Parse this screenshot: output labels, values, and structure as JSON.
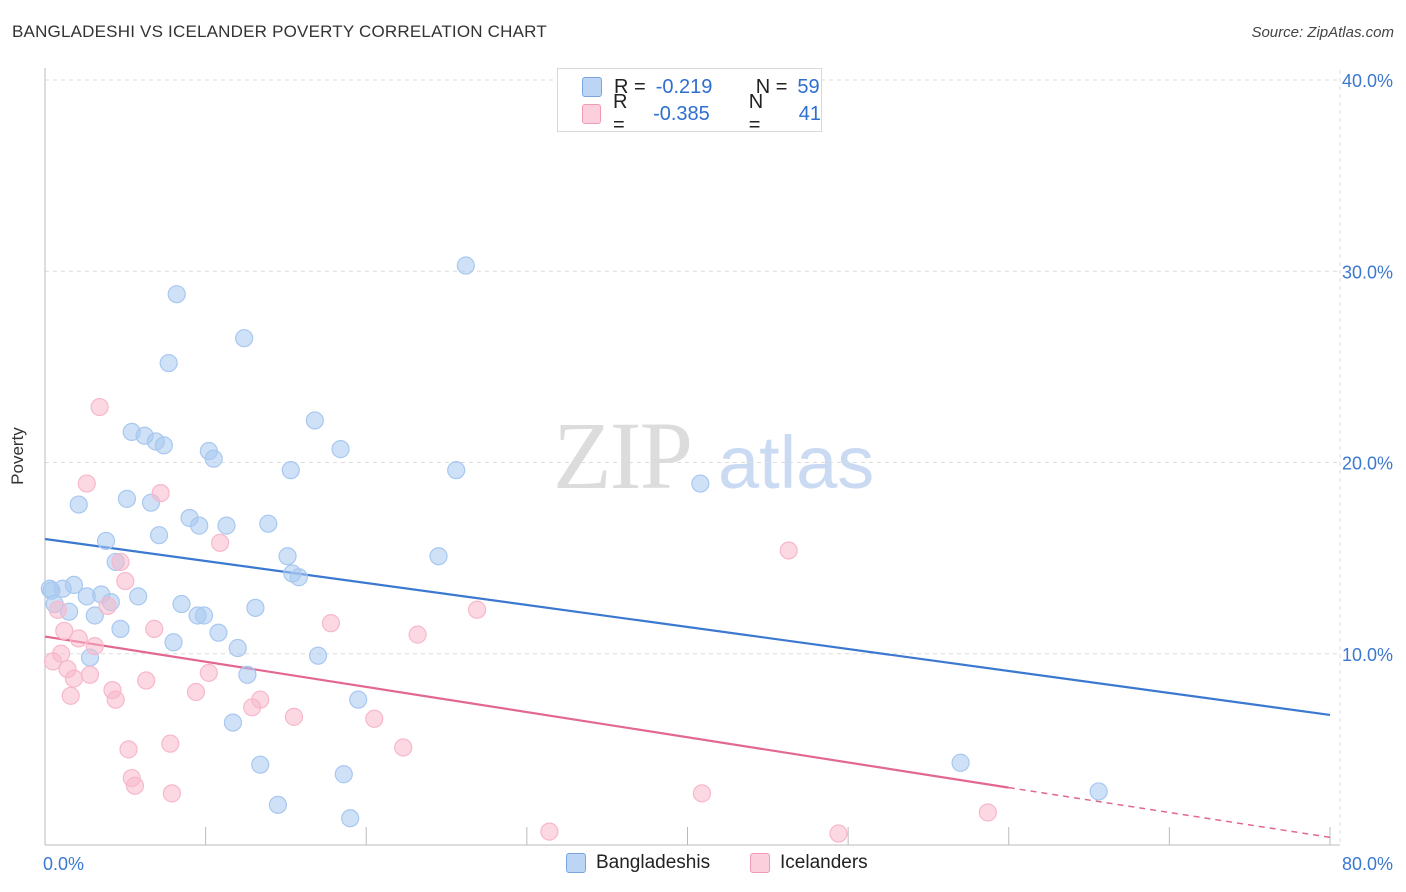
{
  "header": {
    "title": "BANGLADESHI VS ICELANDER POVERTY CORRELATION CHART",
    "source": "Source: ZipAtlas.com"
  },
  "watermark": {
    "zip": "ZIP",
    "atlas": "atlas"
  },
  "legend": {
    "rows": [
      {
        "r_label": "R =",
        "r_value": "-0.219",
        "n_label": "N =",
        "n_value": "59",
        "color": "#a8c8f0"
      },
      {
        "r_label": "R =",
        "r_value": "-0.385",
        "n_label": "N =",
        "n_value": "41",
        "color": "#f7b8cb"
      }
    ]
  },
  "bottom_legend": {
    "bangladeshis": "Bangladeshis",
    "icelanders": "Icelanders"
  },
  "chart_data": {
    "type": "scatter",
    "ylabel": "Poverty",
    "xlim": [
      0,
      80
    ],
    "ylim": [
      0,
      40
    ],
    "x_tick_labels": [
      "0.0%",
      "80.0%"
    ],
    "y_tick_labels": [
      "10.0%",
      "20.0%",
      "30.0%",
      "40.0%"
    ],
    "y_ticks": [
      10,
      20,
      30,
      40
    ],
    "grid": true,
    "series": [
      {
        "name": "Bangladeshis",
        "color": "#3b78d0",
        "fill": "#a8c8f0",
        "trend": {
          "x": [
            0,
            80
          ],
          "y": [
            16.0,
            6.8
          ]
        },
        "points": [
          [
            0.3,
            13.4
          ],
          [
            0.6,
            12.6
          ],
          [
            1.1,
            13.4
          ],
          [
            1.5,
            12.2
          ],
          [
            1.8,
            13.6
          ],
          [
            2.1,
            17.8
          ],
          [
            2.6,
            13.0
          ],
          [
            2.8,
            9.8
          ],
          [
            3.1,
            12.0
          ],
          [
            3.5,
            13.1
          ],
          [
            3.8,
            15.9
          ],
          [
            4.1,
            12.7
          ],
          [
            4.4,
            14.8
          ],
          [
            4.7,
            11.3
          ],
          [
            5.1,
            18.1
          ],
          [
            5.4,
            21.6
          ],
          [
            5.8,
            13.0
          ],
          [
            6.2,
            21.4
          ],
          [
            6.6,
            17.9
          ],
          [
            6.9,
            21.1
          ],
          [
            7.1,
            16.2
          ],
          [
            7.4,
            20.9
          ],
          [
            7.7,
            25.2
          ],
          [
            8.0,
            10.6
          ],
          [
            8.2,
            28.8
          ],
          [
            8.5,
            12.6
          ],
          [
            9.0,
            17.1
          ],
          [
            9.5,
            12.0
          ],
          [
            9.6,
            16.7
          ],
          [
            9.9,
            12.0
          ],
          [
            10.2,
            20.6
          ],
          [
            10.5,
            20.2
          ],
          [
            10.8,
            11.1
          ],
          [
            11.3,
            16.7
          ],
          [
            11.7,
            6.4
          ],
          [
            12.0,
            10.3
          ],
          [
            12.4,
            26.5
          ],
          [
            12.6,
            8.9
          ],
          [
            13.1,
            12.4
          ],
          [
            13.4,
            4.2
          ],
          [
            13.9,
            16.8
          ],
          [
            14.5,
            2.1
          ],
          [
            15.1,
            15.1
          ],
          [
            15.3,
            19.6
          ],
          [
            15.4,
            14.2
          ],
          [
            15.8,
            14.0
          ],
          [
            16.8,
            22.2
          ],
          [
            17.0,
            9.9
          ],
          [
            18.4,
            20.7
          ],
          [
            18.6,
            3.7
          ],
          [
            19.0,
            1.4
          ],
          [
            19.5,
            7.6
          ],
          [
            24.5,
            15.1
          ],
          [
            25.6,
            19.6
          ],
          [
            26.2,
            30.3
          ],
          [
            40.8,
            18.9
          ],
          [
            57.0,
            4.3
          ],
          [
            65.6,
            2.8
          ],
          [
            0.4,
            13.3
          ]
        ]
      },
      {
        "name": "Icelanders",
        "color": "#e2688f",
        "fill": "#f7b8cb",
        "trend": {
          "x": [
            0,
            60
          ],
          "y": [
            10.9,
            3.0
          ]
        },
        "trend_dashed": {
          "x": [
            60,
            80
          ],
          "y": [
            3.0,
            0.4
          ]
        },
        "points": [
          [
            0.5,
            9.6
          ],
          [
            0.8,
            12.3
          ],
          [
            1.0,
            10.0
          ],
          [
            1.2,
            11.2
          ],
          [
            1.4,
            9.2
          ],
          [
            1.6,
            7.8
          ],
          [
            1.8,
            8.7
          ],
          [
            2.1,
            10.8
          ],
          [
            2.6,
            18.9
          ],
          [
            2.8,
            8.9
          ],
          [
            3.1,
            10.4
          ],
          [
            3.4,
            22.9
          ],
          [
            3.9,
            12.5
          ],
          [
            4.2,
            8.1
          ],
          [
            4.4,
            7.6
          ],
          [
            4.7,
            14.8
          ],
          [
            5.0,
            13.8
          ],
          [
            5.2,
            5.0
          ],
          [
            5.4,
            3.5
          ],
          [
            5.6,
            3.1
          ],
          [
            6.3,
            8.6
          ],
          [
            6.8,
            11.3
          ],
          [
            7.2,
            18.4
          ],
          [
            7.8,
            5.3
          ],
          [
            7.9,
            2.7
          ],
          [
            9.4,
            8.0
          ],
          [
            10.2,
            9.0
          ],
          [
            10.9,
            15.8
          ],
          [
            12.9,
            7.2
          ],
          [
            13.4,
            7.6
          ],
          [
            15.5,
            6.7
          ],
          [
            17.8,
            11.6
          ],
          [
            20.5,
            6.6
          ],
          [
            22.3,
            5.1
          ],
          [
            23.2,
            11.0
          ],
          [
            26.9,
            12.3
          ],
          [
            31.4,
            0.7
          ],
          [
            40.9,
            2.7
          ],
          [
            46.3,
            15.4
          ],
          [
            49.4,
            0.6
          ],
          [
            58.7,
            1.7
          ]
        ]
      }
    ]
  }
}
